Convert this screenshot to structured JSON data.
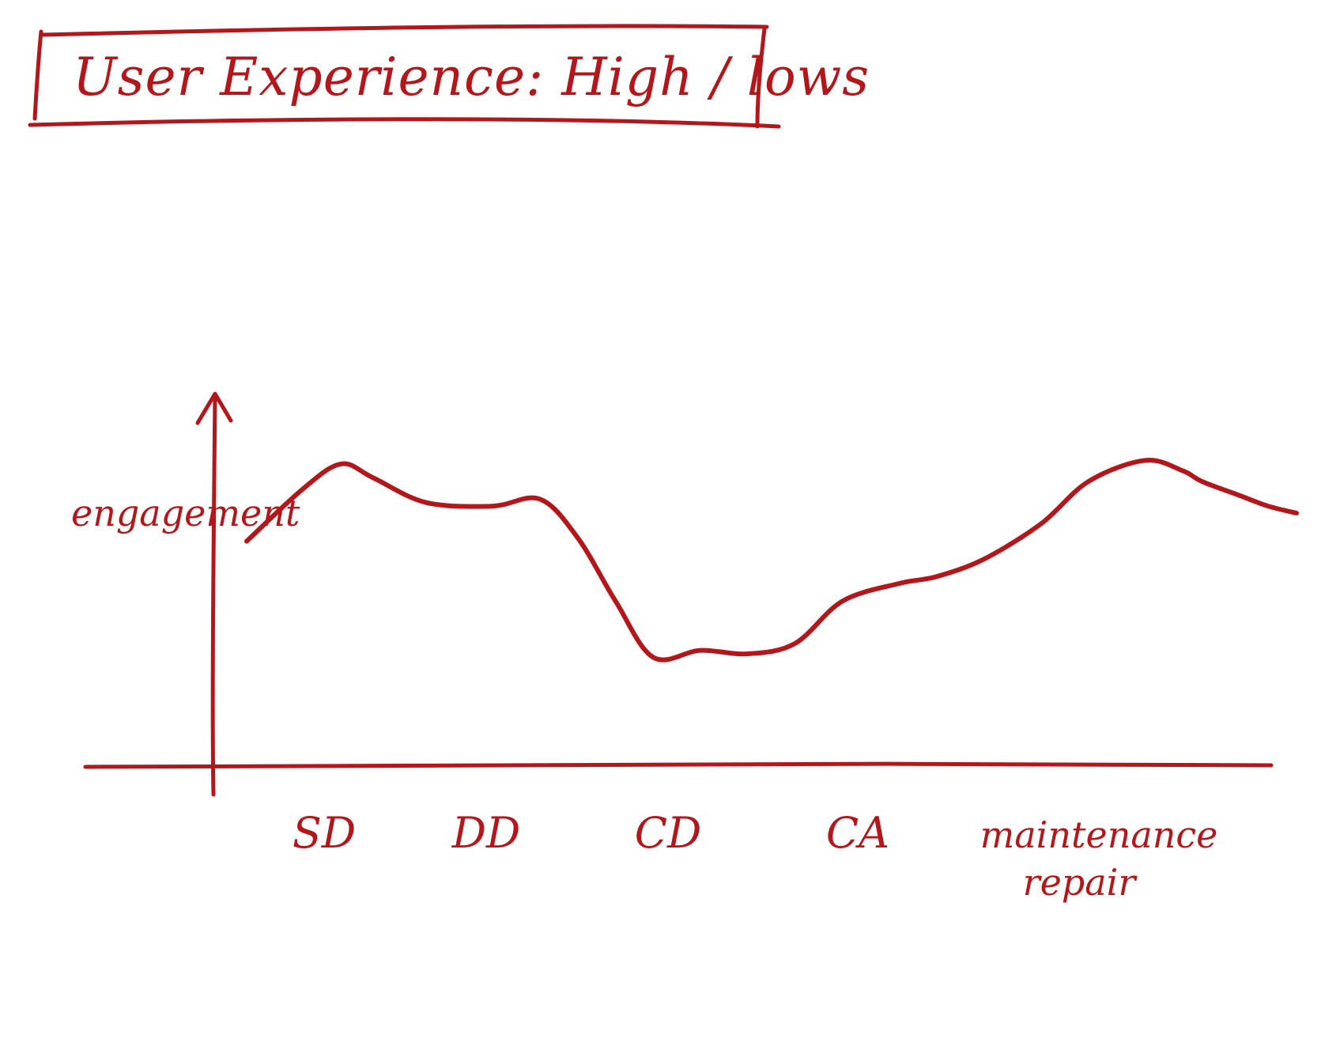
{
  "colors": {
    "ink": "#b3171b",
    "background": "#ffffff"
  },
  "chart_data": {
    "type": "line",
    "title": "User Experience: High / lows",
    "xlabel": "",
    "ylabel": "engagement",
    "grid": false,
    "legend": "none",
    "categories": [
      "SD",
      "DD",
      "CD",
      "CA",
      "maintenance repair"
    ],
    "x_ticks": [
      {
        "label": "SD"
      },
      {
        "label": "DD"
      },
      {
        "label": "CD"
      },
      {
        "label": "CA"
      },
      {
        "label": "maintenance",
        "label2": "repair"
      }
    ],
    "xlim": [
      0,
      5.6
    ],
    "ylim": [
      0,
      10
    ],
    "series": [
      {
        "x": [
          0.05,
          0.35,
          0.55,
          0.72,
          1.0,
          1.35,
          1.6,
          1.8,
          2.0,
          2.2,
          2.45,
          2.7,
          2.95,
          3.2,
          3.5,
          3.7,
          3.95,
          4.25,
          4.5,
          4.8,
          5.0,
          5.1,
          5.3,
          5.45,
          5.6
        ],
        "y": [
          6.3,
          7.8,
          8.5,
          8.1,
          7.4,
          7.3,
          7.5,
          6.4,
          4.6,
          3.0,
          3.2,
          3.1,
          3.4,
          4.6,
          5.1,
          5.3,
          5.8,
          6.8,
          8.0,
          8.6,
          8.3,
          8.0,
          7.6,
          7.3,
          7.1
        ]
      }
    ]
  }
}
